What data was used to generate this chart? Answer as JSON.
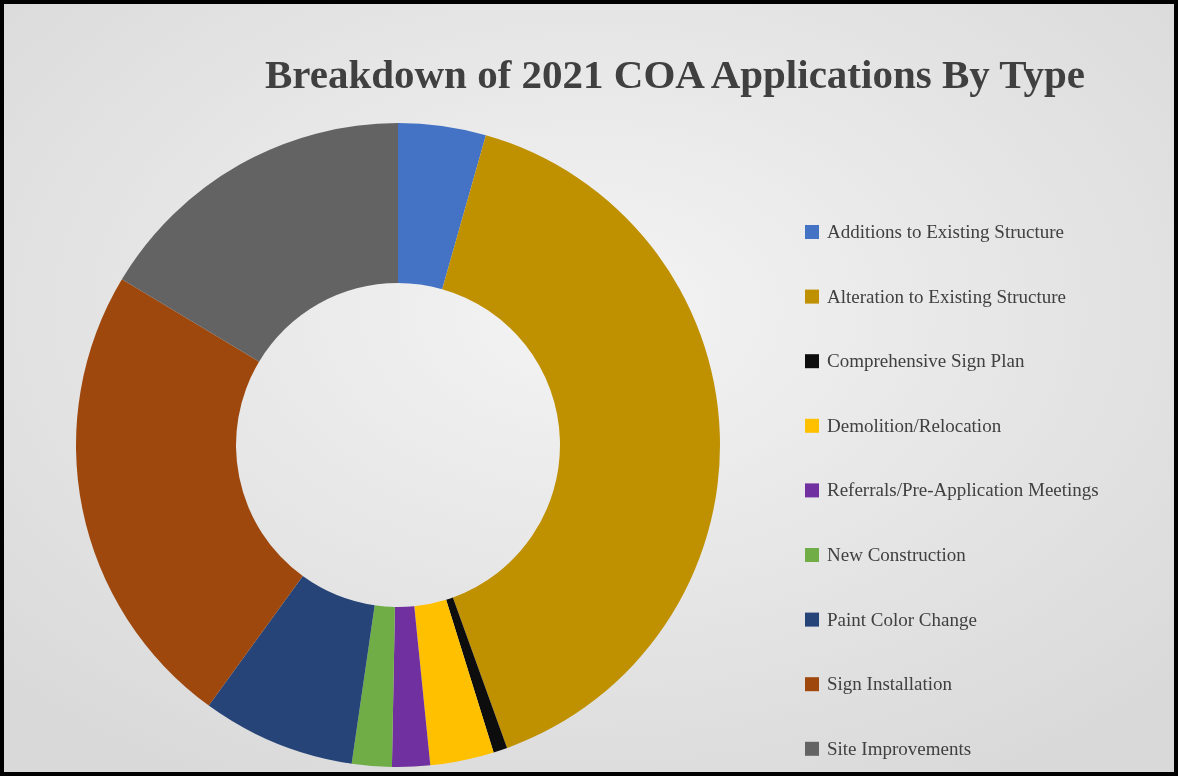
{
  "chart_data": {
    "type": "donut",
    "title": "Breakdown of 2021 COA Applications By Type",
    "categories": [
      "Additions to Existing Structure",
      "Alteration to Existing Structure",
      "Comprehensive Sign Plan",
      "Demolition/Relocation",
      "Referrals/Pre-Application Meetings",
      "New Construction",
      "Paint Color Change",
      "Sign Installation",
      "Site Improvements"
    ],
    "values": [
      4.4,
      40.1,
      0.7,
      3.2,
      1.9,
      2.0,
      7.7,
      23.6,
      16.4
    ],
    "colors": [
      "#4472c4",
      "#bf9000",
      "#0d0d0d",
      "#ffc000",
      "#7030a0",
      "#70ad47",
      "#264478",
      "#9e480e",
      "#636363"
    ],
    "legend": "right"
  }
}
